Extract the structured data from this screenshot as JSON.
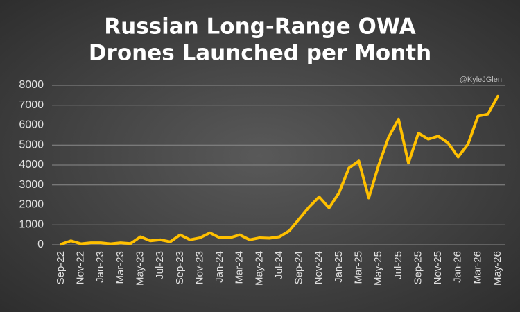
{
  "chart_data": {
    "type": "line",
    "title": [
      "Russian Long-Range OWA",
      "Drones Launched per Month"
    ],
    "credit": "@KyleJGlen",
    "categories": [
      "Sep-22",
      null,
      "Nov-22",
      null,
      "Jan-23",
      null,
      "Mar-23",
      null,
      "May-23",
      null,
      "Jul-23",
      null,
      "Sep-23",
      null,
      "Nov-23",
      null,
      "Jan-24",
      null,
      "Mar-24",
      null,
      "May-24",
      null,
      "Jul-24",
      null,
      "Sep-24",
      null,
      "Nov-24",
      null,
      "Jan-25",
      null,
      "Mar-25",
      null,
      "May-25",
      null,
      "Jul-25",
      null,
      "Sep-25",
      null,
      "Nov-25",
      null,
      "Jan-26",
      null,
      "Mar-26",
      null,
      "May-26"
    ],
    "values": [
      30,
      200,
      50,
      100,
      100,
      50,
      100,
      60,
      400,
      200,
      250,
      150,
      500,
      250,
      350,
      600,
      350,
      350,
      500,
      250,
      350,
      330,
      400,
      700,
      1300,
      1900,
      2400,
      1850,
      2600,
      3850,
      4200,
      2350,
      4000,
      5400,
      6300,
      4100,
      5600,
      5300,
      5450,
      5100,
      4400,
      5050,
      6450,
      6550,
      7450
    ],
    "color": "#FFC000",
    "ylim": [
      0,
      8000
    ],
    "yticks": [
      0,
      1000,
      2000,
      3000,
      4000,
      5000,
      6000,
      7000,
      8000
    ],
    "grid": true
  }
}
